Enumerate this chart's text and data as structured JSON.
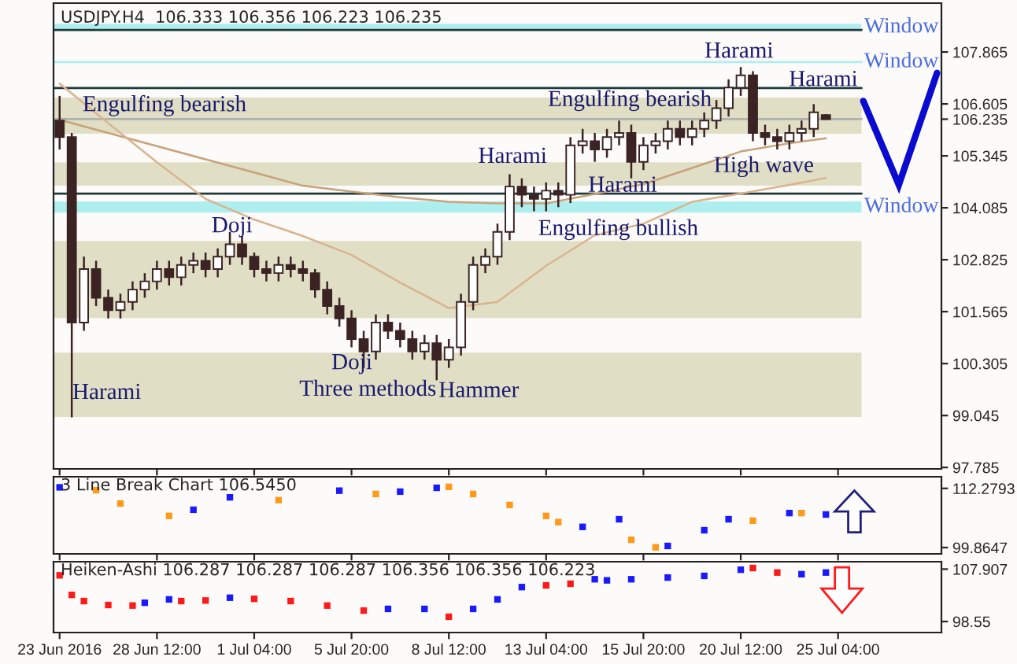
{
  "chart_data": [
    {
      "type": "candlestick",
      "title": "USDJPY.H4  106.333 106.356 106.223 106.235",
      "categories": [
        null,
        null,
        null,
        null,
        null,
        null,
        null,
        null,
        null,
        null,
        null,
        null,
        null,
        null,
        null,
        null,
        null,
        null,
        null,
        null,
        null,
        null,
        null,
        null,
        null,
        null,
        null,
        null,
        null,
        null,
        null,
        null,
        null,
        null,
        null,
        null,
        null,
        null,
        null,
        null,
        null,
        null,
        null,
        null,
        null,
        null,
        null,
        null,
        null,
        null,
        null,
        null,
        null,
        null,
        null,
        null,
        null,
        null,
        null,
        null,
        null,
        null,
        null,
        null,
        null,
        null,
        null,
        null,
        null,
        null,
        null,
        null,
        null
      ],
      "color": "#3b2323",
      "ohlc": [
        [
          106.2,
          106.8,
          105.5,
          105.8
        ],
        [
          105.8,
          105.9,
          99.0,
          101.3
        ],
        [
          101.3,
          102.9,
          101.1,
          102.6
        ],
        [
          102.6,
          102.8,
          101.7,
          101.9
        ],
        [
          101.9,
          102.1,
          101.4,
          101.6
        ],
        [
          101.6,
          102.0,
          101.4,
          101.8
        ],
        [
          101.8,
          102.3,
          101.6,
          102.1
        ],
        [
          102.1,
          102.5,
          101.9,
          102.3
        ],
        [
          102.3,
          102.8,
          102.1,
          102.6
        ],
        [
          102.6,
          102.8,
          102.2,
          102.4
        ],
        [
          102.4,
          102.9,
          102.2,
          102.7
        ],
        [
          102.7,
          103.0,
          102.5,
          102.8
        ],
        [
          102.8,
          103.0,
          102.4,
          102.6
        ],
        [
          102.6,
          103.1,
          102.4,
          102.9
        ],
        [
          102.9,
          103.5,
          102.7,
          103.2
        ],
        [
          103.2,
          103.4,
          102.7,
          102.9
        ],
        [
          102.9,
          103.0,
          102.4,
          102.6
        ],
        [
          102.6,
          102.8,
          102.3,
          102.5
        ],
        [
          102.5,
          102.9,
          102.3,
          102.7
        ],
        [
          102.7,
          102.9,
          102.4,
          102.6
        ],
        [
          102.6,
          102.8,
          102.3,
          102.5
        ],
        [
          102.5,
          102.6,
          101.9,
          102.1
        ],
        [
          102.1,
          102.3,
          101.5,
          101.7
        ],
        [
          101.7,
          101.9,
          101.2,
          101.4
        ],
        [
          101.4,
          101.6,
          100.7,
          100.9
        ],
        [
          100.9,
          101.1,
          100.2,
          100.6
        ],
        [
          100.6,
          101.5,
          100.4,
          101.3
        ],
        [
          101.3,
          101.5,
          100.9,
          101.1
        ],
        [
          101.1,
          101.3,
          100.7,
          100.9
        ],
        [
          100.9,
          101.1,
          100.4,
          100.6
        ],
        [
          100.6,
          101.0,
          100.4,
          100.8
        ],
        [
          100.8,
          101.0,
          99.9,
          100.4
        ],
        [
          100.4,
          100.9,
          100.2,
          100.7
        ],
        [
          100.7,
          102.0,
          100.5,
          101.8
        ],
        [
          101.8,
          102.9,
          101.6,
          102.7
        ],
        [
          102.7,
          103.1,
          102.5,
          102.9
        ],
        [
          102.9,
          103.7,
          102.7,
          103.5
        ],
        [
          103.5,
          104.9,
          103.3,
          104.6
        ],
        [
          104.6,
          104.8,
          104.1,
          104.4
        ],
        [
          104.4,
          104.6,
          104.0,
          104.3
        ],
        [
          104.3,
          104.7,
          104.0,
          104.5
        ],
        [
          104.5,
          104.7,
          104.1,
          104.4
        ],
        [
          104.4,
          105.8,
          104.2,
          105.6
        ],
        [
          105.6,
          106.0,
          105.4,
          105.7
        ],
        [
          105.7,
          105.9,
          105.2,
          105.5
        ],
        [
          105.5,
          106.0,
          105.3,
          105.8
        ],
        [
          105.8,
          106.2,
          105.6,
          105.9
        ],
        [
          105.9,
          106.1,
          104.8,
          105.2
        ],
        [
          105.2,
          105.8,
          105.0,
          105.6
        ],
        [
          105.6,
          105.9,
          105.4,
          105.7
        ],
        [
          105.7,
          106.2,
          105.5,
          106.0
        ],
        [
          106.0,
          106.2,
          105.6,
          105.8
        ],
        [
          105.8,
          106.2,
          105.6,
          106.0
        ],
        [
          106.0,
          106.4,
          105.8,
          106.2
        ],
        [
          106.2,
          106.7,
          106.0,
          106.5
        ],
        [
          106.5,
          107.2,
          106.3,
          107.0
        ],
        [
          107.0,
          107.5,
          106.8,
          107.3
        ],
        [
          107.3,
          107.4,
          105.7,
          105.9
        ],
        [
          105.9,
          106.1,
          105.6,
          105.8
        ],
        [
          105.8,
          106.0,
          105.5,
          105.7
        ],
        [
          105.7,
          106.1,
          105.5,
          105.9
        ],
        [
          105.9,
          106.2,
          105.7,
          106.0
        ],
        [
          106.0,
          106.6,
          105.8,
          106.4
        ],
        [
          106.333,
          106.356,
          106.223,
          106.235
        ],
        null,
        null,
        null,
        null,
        null,
        null,
        null,
        null,
        null
      ],
      "series": [
        {
          "type": "line",
          "color": "#c8a27a",
          "values": [
            106.22,
            null,
            null,
            null,
            105.9,
            null,
            null,
            null,
            105.58,
            null,
            null,
            null,
            105.26,
            null,
            null,
            null,
            104.94,
            null,
            null,
            null,
            104.62,
            null,
            null,
            null,
            104.48,
            null,
            null,
            null,
            104.34,
            null,
            null,
            null,
            104.23,
            null,
            null,
            null,
            104.19,
            null,
            null,
            null,
            104.19,
            null,
            null,
            null,
            104.42,
            null,
            null,
            null,
            104.66,
            null,
            null,
            null,
            105.05,
            null,
            null,
            null,
            105.45,
            null,
            null,
            null,
            105.65,
            null,
            null,
            105.77,
            null,
            null,
            null,
            null,
            null,
            null,
            null,
            null,
            null
          ]
        },
        {
          "type": "line",
          "color": "#d9b48f",
          "values": [
            107.1,
            null,
            null,
            null,
            106.14,
            null,
            null,
            null,
            105.19,
            null,
            null,
            null,
            104.3,
            null,
            null,
            null,
            103.8,
            null,
            null,
            null,
            103.4,
            null,
            null,
            null,
            102.94,
            null,
            null,
            null,
            102.27,
            null,
            null,
            null,
            101.65,
            null,
            null,
            null,
            101.8,
            null,
            null,
            null,
            102.68,
            null,
            null,
            null,
            103.42,
            null,
            null,
            null,
            103.7,
            null,
            null,
            null,
            104.23,
            null,
            null,
            null,
            104.43,
            null,
            null,
            null,
            104.64,
            null,
            null,
            104.81,
            null,
            null,
            null,
            null,
            null,
            null,
            null,
            null,
            null
          ]
        }
      ],
      "bands": [
        {
          "axis": "y",
          "from": 105.88,
          "to": 106.76,
          "color": "#e0dfc5"
        },
        {
          "axis": "y",
          "from": 104.62,
          "to": 105.19,
          "color": "#e0dfc5"
        },
        {
          "axis": "y",
          "from": 101.41,
          "to": 103.28,
          "color": "#e0dfc5"
        },
        {
          "axis": "y",
          "from": 99.01,
          "to": 100.57,
          "color": "#e0dfc5"
        },
        {
          "axis": "y",
          "from": 108.38,
          "to": 108.55,
          "color": "#aeeeee",
          "label": "Window"
        },
        {
          "axis": "y",
          "from": 103.97,
          "to": 104.24,
          "color": "#aeeeee",
          "label": "Window"
        }
      ],
      "ref_lines": [
        {
          "axis": "y",
          "value": 107.62,
          "color": "#aeeeee",
          "label": "Window"
        },
        {
          "axis": "y",
          "value": 108.4,
          "color": "#1f3b3b"
        },
        {
          "axis": "y",
          "value": 106.99,
          "color": "#1f3b3b"
        },
        {
          "axis": "y",
          "value": 104.43,
          "color": "#1f3b3b"
        },
        {
          "axis": "y",
          "value": 106.235,
          "color": "#b0b0b0"
        }
      ],
      "annotations": [
        "Engulfing bearish",
        "Harami",
        "Doji",
        "Doji",
        "Three methods",
        "Hammer",
        "Harami",
        "Harami",
        "Engulfing bullish",
        "Engulfing bearish",
        "High wave",
        "Harami",
        "Harami"
      ],
      "ylim": [
        97.75,
        109.05
      ],
      "yticks": [
        107.865,
        106.605,
        106.235,
        105.345,
        104.085,
        102.825,
        101.565,
        100.305,
        99.045,
        97.785
      ],
      "tick_labels": "y"
    },
    {
      "type": "scatter",
      "title": "3 Line Break Chart 106.5450",
      "marker": "square",
      "categories": [
        null,
        null,
        null,
        null,
        null,
        null,
        null,
        null,
        null,
        null,
        null,
        null,
        null,
        null,
        null,
        null,
        null,
        null,
        null,
        null,
        null,
        null,
        null,
        null,
        null,
        null,
        null,
        null,
        null,
        null,
        null,
        null,
        null,
        null,
        null,
        null,
        null,
        null,
        null,
        null,
        null,
        null,
        null,
        null,
        null,
        null,
        null,
        null,
        null,
        null,
        null,
        null,
        null,
        null,
        null,
        null,
        null,
        null,
        null,
        null,
        null,
        null,
        null,
        null,
        null,
        null,
        null,
        null,
        null,
        null,
        null,
        null,
        null
      ],
      "series": [
        {
          "color": "#1a1aff",
          "values": [
            112.5,
            null,
            null,
            null,
            null,
            null,
            null,
            null,
            null,
            null,
            null,
            107.8,
            null,
            null,
            110.4,
            null,
            null,
            null,
            null,
            null,
            null,
            null,
            null,
            111.8,
            null,
            null,
            null,
            null,
            111.6,
            null,
            null,
            112.4,
            null,
            null,
            null,
            null,
            null,
            null,
            null,
            null,
            null,
            null,
            null,
            104.2,
            null,
            null,
            105.8,
            null,
            null,
            null,
            100.2,
            null,
            null,
            103.5,
            null,
            105.8,
            null,
            null,
            null,
            null,
            107.1,
            null,
            null,
            106.8,
            null,
            null,
            null,
            null,
            null,
            null,
            null,
            null,
            null
          ]
        },
        {
          "color": "#ff9a1a",
          "values": [
            null,
            null,
            null,
            111.9,
            null,
            109.1,
            null,
            null,
            null,
            106.5,
            null,
            null,
            null,
            null,
            null,
            null,
            null,
            null,
            109.8,
            null,
            null,
            null,
            null,
            null,
            null,
            null,
            111.1,
            null,
            null,
            null,
            null,
            null,
            112.6,
            null,
            111.1,
            null,
            null,
            108.8,
            null,
            null,
            106.5,
            105.2,
            null,
            null,
            null,
            null,
            null,
            101.5,
            null,
            99.9,
            null,
            null,
            null,
            null,
            null,
            null,
            null,
            105.5,
            null,
            null,
            null,
            107.1,
            null,
            null,
            null,
            null,
            null,
            null,
            null,
            null,
            null,
            null,
            null
          ]
        }
      ],
      "ylim": [
        98.54,
        114.72
      ],
      "yticks": [
        112.2793,
        99.8647
      ],
      "tick_labels": "y"
    },
    {
      "type": "scatter",
      "title": "Heiken-Ashi 106.287 106.287 106.287 106.356 106.356 106.223",
      "marker": "square",
      "categories": [
        "23 Jun 2016",
        null,
        null,
        null,
        null,
        null,
        null,
        null,
        "28 Jun 12:00",
        null,
        null,
        null,
        null,
        null,
        null,
        null,
        "1 Jul 04:00",
        null,
        null,
        null,
        null,
        null,
        null,
        null,
        "5 Jul 20:00",
        null,
        null,
        null,
        null,
        null,
        null,
        null,
        "8 Jul 12:00",
        null,
        null,
        null,
        null,
        null,
        null,
        null,
        "13 Jul 04:00",
        null,
        null,
        null,
        null,
        null,
        null,
        null,
        "15 Jul 20:00",
        null,
        null,
        null,
        null,
        null,
        null,
        null,
        "20 Jul 12:00",
        null,
        null,
        null,
        null,
        null,
        null,
        null,
        "25 Jul 04:00",
        null,
        null,
        null,
        null,
        null,
        null,
        null,
        null
      ],
      "series": [
        {
          "color": "#ff1a1a",
          "values": [
            106.8,
            103.3,
            102.2,
            null,
            101.5,
            null,
            101.4,
            null,
            null,
            null,
            102.2,
            null,
            102.3,
            null,
            null,
            null,
            102.6,
            null,
            null,
            102.2,
            null,
            null,
            101.4,
            null,
            null,
            100.5,
            null,
            null,
            null,
            null,
            null,
            null,
            99.4,
            null,
            null,
            null,
            null,
            null,
            null,
            null,
            105.0,
            null,
            105.3,
            null,
            null,
            null,
            null,
            null,
            null,
            null,
            null,
            null,
            null,
            null,
            null,
            null,
            null,
            108.1,
            null,
            107.3,
            null,
            null,
            null,
            null,
            null,
            null,
            null,
            null,
            null,
            null,
            null,
            null,
            null
          ]
        },
        {
          "color": "#1a1aff",
          "values": [
            null,
            null,
            null,
            null,
            null,
            null,
            null,
            101.9,
            null,
            102.5,
            null,
            null,
            null,
            null,
            102.8,
            null,
            null,
            null,
            null,
            null,
            null,
            null,
            null,
            null,
            null,
            null,
            null,
            100.8,
            null,
            null,
            100.8,
            null,
            null,
            null,
            100.8,
            null,
            102.5,
            null,
            104.7,
            null,
            null,
            null,
            null,
            null,
            106.1,
            105.9,
            null,
            106.1,
            null,
            null,
            106.4,
            null,
            null,
            106.7,
            null,
            null,
            107.8,
            null,
            null,
            null,
            null,
            107.0,
            null,
            107.3,
            null,
            null,
            null,
            null,
            null,
            null,
            null,
            null,
            null
          ]
        }
      ],
      "ylim": [
        96.58,
        109.23
      ],
      "yticks": [
        107.907,
        98.55
      ]
    }
  ]
}
